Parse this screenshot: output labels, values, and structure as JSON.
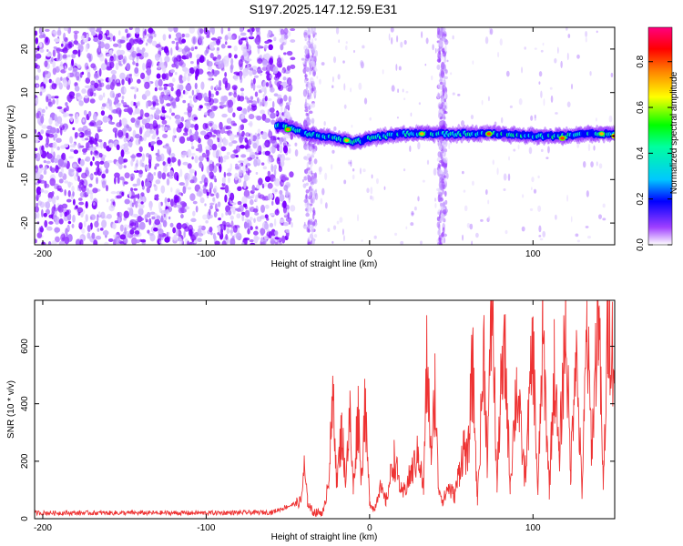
{
  "title": "S197.2025.147.12.59.E31",
  "chart_data": [
    {
      "type": "heatmap",
      "name": "spectrogram",
      "xlabel": "Height of straight line (km)",
      "ylabel": "Frequency (Hz)",
      "xlim": [
        -205,
        150
      ],
      "ylim": [
        -25,
        25
      ],
      "xticks": [
        -200,
        -100,
        0,
        100
      ],
      "yticks": [
        -20,
        -10,
        0,
        10,
        20
      ],
      "colorbar": {
        "label": "Normalized spectral amplitude",
        "range": [
          0,
          0.95
        ],
        "ticks": [
          0.0,
          0.2,
          0.4,
          0.6,
          0.8
        ],
        "tick_labels": [
          "0.0",
          "0.2",
          "0.4",
          "0.6",
          "0.8"
        ],
        "colors": [
          "#ffffff",
          "#7b00ff",
          "#0000ff",
          "#00e5ff",
          "#00ff00",
          "#ffff00",
          "#ff8000",
          "#ff0000",
          "#ff0080"
        ]
      },
      "noise_region": {
        "x": [
          -205,
          -55
        ],
        "description_level": 0.15
      },
      "noise_streaks": [
        {
          "x": [
            -40,
            -33
          ],
          "amplitude": 0.12
        },
        {
          "x": [
            42,
            47
          ],
          "amplitude": 0.12
        }
      ],
      "signal_track": {
        "x": [
          -57,
          -50,
          -45,
          -40,
          -30,
          -20,
          -10,
          0,
          20,
          40,
          60,
          80,
          100,
          120,
          135,
          150
        ],
        "freq": [
          2.5,
          2.0,
          1.5,
          0.5,
          0.0,
          -0.5,
          -1.5,
          -0.5,
          0.5,
          0.5,
          0.5,
          0.5,
          0.0,
          0.0,
          0.5,
          0.5
        ],
        "peaks": [
          {
            "x": -50,
            "freq": 1.5,
            "amplitude": 0.8
          },
          {
            "x": -14,
            "freq": -1.0,
            "amplitude": 0.75
          },
          {
            "x": 32,
            "freq": 0.5,
            "amplitude": 0.75
          },
          {
            "x": 73,
            "freq": 0.5,
            "amplitude": 0.85
          },
          {
            "x": 118,
            "freq": -0.5,
            "amplitude": 0.85
          },
          {
            "x": 142,
            "freq": 0.5,
            "amplitude": 0.75
          },
          {
            "x": 150,
            "freq": 0.0,
            "amplitude": 0.9
          }
        ]
      }
    },
    {
      "type": "line",
      "name": "snr",
      "xlabel": "Height of straight line (km)",
      "ylabel": "SNR (10 * v/v)",
      "xlim": [
        -205,
        150
      ],
      "ylim": [
        0,
        760
      ],
      "xticks": [
        -200,
        -100,
        0,
        100
      ],
      "yticks": [
        0,
        200,
        400,
        600
      ],
      "line_color": "#ee3333",
      "series": [
        {
          "x": [
            -205,
            -150,
            -100,
            -60,
            -42,
            -40,
            -38,
            -35,
            -32,
            -28,
            -25,
            -22,
            -20,
            -17,
            -15,
            -12,
            -10,
            -7,
            -5,
            -3,
            0,
            3,
            6,
            10,
            15,
            20,
            25,
            30,
            33,
            35,
            38,
            40,
            42,
            45,
            48,
            52,
            55,
            58,
            60,
            63,
            66,
            70,
            72,
            75,
            78,
            80,
            83,
            86,
            90,
            95,
            100,
            103,
            106,
            110,
            113,
            116,
            120,
            123,
            126,
            130,
            133,
            136,
            140,
            143,
            146,
            150
          ],
          "y": [
            20,
            20,
            20,
            22,
            60,
            175,
            60,
            25,
            20,
            25,
            150,
            430,
            120,
            320,
            140,
            350,
            100,
            380,
            140,
            400,
            60,
            30,
            110,
            60,
            210,
            80,
            150,
            230,
            100,
            540,
            200,
            470,
            120,
            60,
            110,
            80,
            170,
            260,
            190,
            540,
            60,
            590,
            210,
            760,
            110,
            420,
            560,
            120,
            470,
            140,
            600,
            80,
            640,
            100,
            530,
            200,
            700,
            150,
            620,
            90,
            650,
            240,
            770,
            100,
            700,
            540
          ]
        }
      ]
    }
  ]
}
